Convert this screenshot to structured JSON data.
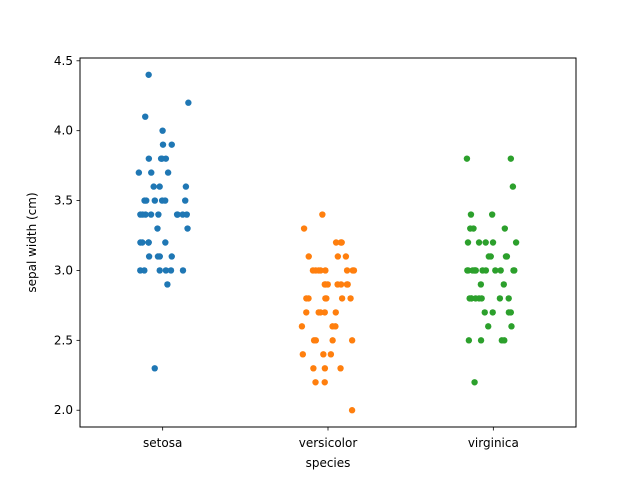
{
  "chart_data": {
    "type": "scatter",
    "subtype": "strip",
    "xlabel": "species",
    "ylabel": "sepal width (cm)",
    "categories": [
      "setosa",
      "versicolor",
      "virginica"
    ],
    "ylim": [
      1.88,
      4.52
    ],
    "yticks": [
      2.0,
      2.5,
      3.0,
      3.5,
      4.0,
      4.5
    ],
    "ytick_labels": [
      "2.0",
      "2.5",
      "3.0",
      "3.5",
      "4.0",
      "4.5"
    ],
    "grid": false,
    "legend": "none",
    "series": [
      {
        "category": "setosa",
        "color": "#1f77b4",
        "values": [
          3.5,
          3.0,
          3.2,
          3.1,
          3.6,
          3.9,
          3.4,
          3.4,
          2.9,
          3.1,
          3.7,
          3.4,
          3.0,
          3.0,
          4.0,
          4.4,
          3.9,
          3.5,
          3.8,
          3.8,
          3.4,
          3.7,
          3.6,
          3.3,
          3.4,
          3.0,
          3.4,
          3.5,
          3.4,
          3.2,
          3.1,
          3.4,
          4.1,
          4.2,
          3.1,
          3.2,
          3.5,
          3.6,
          3.0,
          3.4,
          3.5,
          2.3,
          3.2,
          3.5,
          3.8,
          3.0,
          3.8,
          3.2,
          3.7,
          3.3
        ]
      },
      {
        "category": "versicolor",
        "color": "#ff7f0e",
        "values": [
          3.2,
          3.2,
          3.1,
          2.3,
          2.8,
          2.8,
          3.3,
          2.4,
          2.9,
          2.7,
          2.0,
          3.0,
          2.2,
          2.9,
          2.9,
          3.1,
          3.0,
          2.7,
          2.2,
          2.5,
          3.2,
          2.8,
          2.5,
          2.8,
          2.9,
          3.0,
          2.8,
          3.0,
          2.9,
          2.6,
          2.4,
          2.4,
          2.7,
          2.7,
          3.0,
          3.4,
          3.1,
          2.3,
          3.0,
          2.5,
          2.6,
          3.0,
          2.6,
          2.3,
          2.7,
          3.0,
          2.9,
          2.9,
          2.5,
          2.8
        ]
      },
      {
        "category": "virginica",
        "color": "#2ca02c",
        "values": [
          3.3,
          2.7,
          3.0,
          2.9,
          3.0,
          3.0,
          2.5,
          2.9,
          2.5,
          3.6,
          3.2,
          2.7,
          3.0,
          2.5,
          2.8,
          3.2,
          3.0,
          3.8,
          2.6,
          2.2,
          3.2,
          2.8,
          2.8,
          2.7,
          3.3,
          3.2,
          2.8,
          3.0,
          2.8,
          3.0,
          2.8,
          3.8,
          2.8,
          2.8,
          2.6,
          3.0,
          3.4,
          3.1,
          3.0,
          3.1,
          3.1,
          3.1,
          2.7,
          3.2,
          3.3,
          3.0,
          2.5,
          3.0,
          3.4,
          3.0
        ]
      }
    ]
  }
}
